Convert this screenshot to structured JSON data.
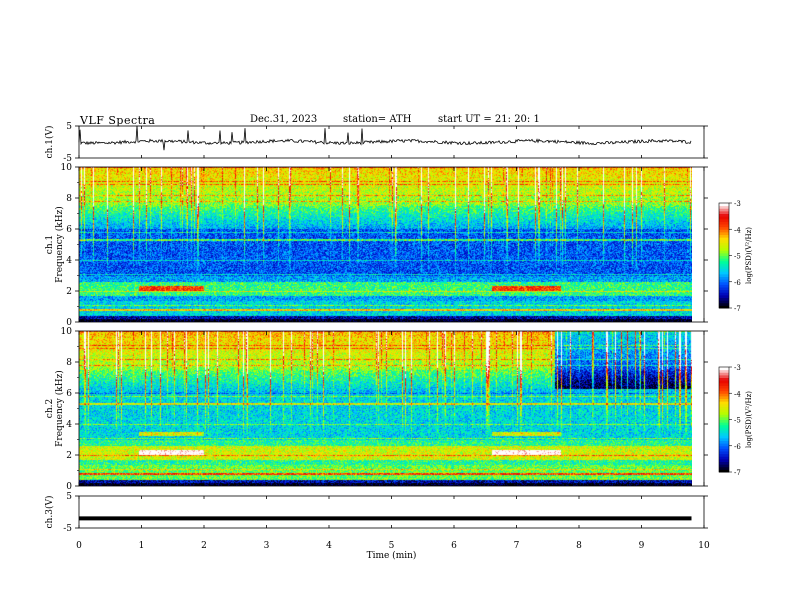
{
  "header": {
    "title": "VLF  Spectra",
    "date": "Dec.31, 2023",
    "station": "station= ATH",
    "start": "start  UT  =    21: 20: 1"
  },
  "colors": {
    "colormap": [
      "#000000",
      "#0000b4",
      "#0050ff",
      "#00c8ff",
      "#00ff96",
      "#b4ff00",
      "#ffdc00",
      "#ff4600",
      "#e60000",
      "#ffffff"
    ],
    "trace": "#000000",
    "frame": "#000000"
  },
  "chart_data": [
    {
      "type": "line",
      "panel": "ch1-waveform",
      "ylabel": "ch.1(V)",
      "ylim": [
        -5,
        5
      ],
      "yticks": [
        "5",
        "-5"
      ],
      "x_range_min": [
        0,
        9.8
      ],
      "approx_level_v": 0,
      "approx_amplitude_v": 1,
      "grid": false
    },
    {
      "type": "heatmap",
      "panel": "ch1-spectrogram",
      "ylabel": "ch.1\nFrequency  (kHz)",
      "xlim_min": [
        0,
        10
      ],
      "ylim_khz": [
        0,
        10
      ],
      "yticks": [
        "0",
        "2",
        "4",
        "6",
        "8",
        "10"
      ],
      "data_end_min": 9.8,
      "colorbar": {
        "label": "log(PSD)(V²/Hz)",
        "range": [
          -7,
          -3
        ],
        "ticks": [
          "-3",
          "-4",
          "-5",
          "-6",
          "-7"
        ]
      }
    },
    {
      "type": "heatmap",
      "panel": "ch2-spectrogram",
      "ylabel": "ch.2\nFrequency  (kHz)",
      "xlim_min": [
        0,
        10
      ],
      "ylim_khz": [
        0,
        10
      ],
      "yticks": [
        "0",
        "2",
        "4",
        "6",
        "8",
        "10"
      ],
      "data_end_min": 9.8,
      "colorbar": {
        "label": "log(PSD)(V²/Hz)",
        "range": [
          -7,
          -3
        ],
        "ticks": [
          "-3",
          "-4",
          "-5",
          "-6",
          "-7"
        ]
      }
    },
    {
      "type": "line",
      "panel": "ch3-waveform",
      "ylabel": "ch.3(V)",
      "ylim": [
        -5,
        5
      ],
      "yticks": [
        "5",
        "-5"
      ],
      "x_range_min": [
        0,
        9.8
      ],
      "approx_level_v": -2,
      "grid": false
    }
  ],
  "xaxis": {
    "label": "Time  (min)",
    "ticks": [
      "0",
      "1",
      "2",
      "3",
      "4",
      "5",
      "6",
      "7",
      "8",
      "9",
      "10"
    ]
  }
}
